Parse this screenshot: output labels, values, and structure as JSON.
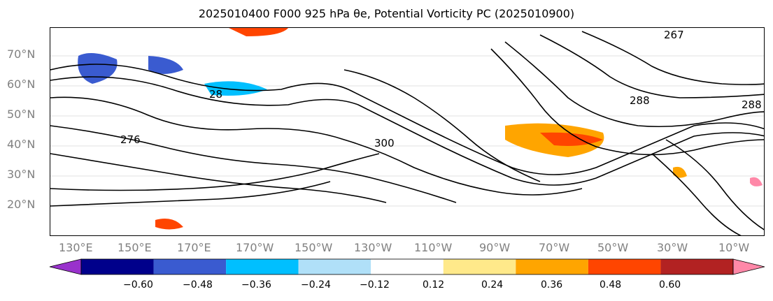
{
  "title": "2025010400 F000 925 hPa θe, Potential Vorticity PC (2025010900)",
  "map": {
    "lat_labels": [
      "70°N",
      "60°N",
      "50°N",
      "40°N",
      "30°N",
      "20°N"
    ],
    "lon_labels": [
      "130°E",
      "150°E",
      "170°E",
      "170°W",
      "150°W",
      "130°W",
      "110°W",
      "90°W",
      "70°W",
      "50°W",
      "30°W",
      "10°W"
    ],
    "contour_labels": [
      "267",
      "288",
      "288",
      "276",
      "300",
      "28"
    ]
  },
  "colorbar": {
    "ticks": [
      "−0.60",
      "−0.48",
      "−0.36",
      "−0.24",
      "−0.12",
      "0.12",
      "0.24",
      "0.36",
      "0.48",
      "0.60"
    ],
    "colors": [
      "#9932cc",
      "#00008b",
      "#3a5bd0",
      "#00bfff",
      "#b0e0f8",
      "#ffffff",
      "#ffe98a",
      "#ffa500",
      "#ff4500",
      "#b22222",
      "#ff88a8"
    ]
  }
}
